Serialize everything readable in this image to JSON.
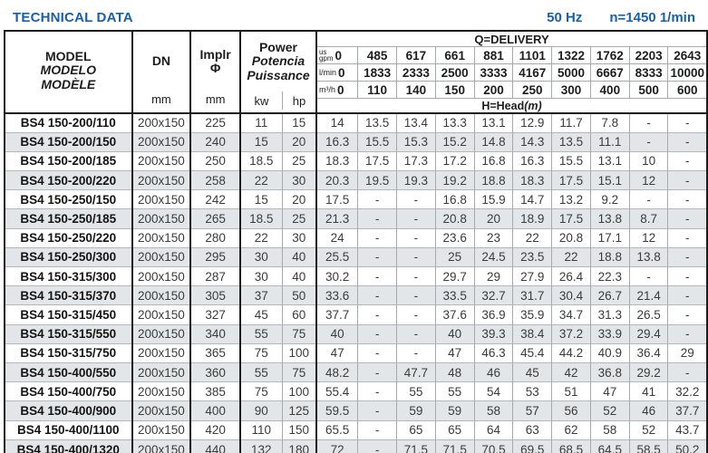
{
  "page": {
    "title": "TECHNICAL DATA",
    "frequency": "50 Hz",
    "speed": "n=1450 1/min"
  },
  "table": {
    "headers": {
      "model_lines": [
        "MODEL",
        "MODELO",
        "MODÈLE"
      ],
      "dn_label": "DN",
      "dn_unit": "mm",
      "implr_label": "Implr",
      "implr_symbol": "Φ",
      "implr_unit": "mm",
      "power_lines": [
        "Power",
        "Potencia",
        "Puissance"
      ],
      "power_units": [
        "kw",
        "hp"
      ],
      "delivery_title": "Q=DELIVERY",
      "delivery_unit_rows": [
        {
          "unit_lines": [
            "us",
            "gpm"
          ],
          "values": [
            "0",
            "485",
            "617",
            "661",
            "881",
            "1101",
            "1322",
            "1762",
            "2203",
            "2643"
          ]
        },
        {
          "unit_lines": [
            "l/min"
          ],
          "values": [
            "0",
            "1833",
            "2333",
            "2500",
            "3333",
            "4167",
            "5000",
            "6667",
            "8333",
            "10000"
          ]
        },
        {
          "unit_lines": [
            "m³/h"
          ],
          "values": [
            "0",
            "110",
            "140",
            "150",
            "200",
            "250",
            "300",
            "400",
            "500",
            "600"
          ]
        }
      ],
      "head_label": "H=Head",
      "head_unit": "(m)"
    },
    "rows": [
      {
        "model": "BS4 150-200/110",
        "dn": "200x150",
        "implr": "225",
        "kw": "11",
        "hp": "15",
        "head": [
          "14",
          "13.5",
          "13.4",
          "13.3",
          "13.1",
          "12.9",
          "11.7",
          "7.8",
          "-",
          "-"
        ]
      },
      {
        "model": "BS4 150-200/150",
        "dn": "200x150",
        "implr": "240",
        "kw": "15",
        "hp": "20",
        "head": [
          "16.3",
          "15.5",
          "15.3",
          "15.2",
          "14.8",
          "14.3",
          "13.5",
          "11.1",
          "-",
          "-"
        ]
      },
      {
        "model": "BS4 150-200/185",
        "dn": "200x150",
        "implr": "250",
        "kw": "18.5",
        "hp": "25",
        "head": [
          "18.3",
          "17.5",
          "17.3",
          "17.2",
          "16.8",
          "16.3",
          "15.5",
          "13.1",
          "10",
          "-"
        ]
      },
      {
        "model": "BS4 150-200/220",
        "dn": "200x150",
        "implr": "258",
        "kw": "22",
        "hp": "30",
        "head": [
          "20.3",
          "19.5",
          "19.3",
          "19.2",
          "18.8",
          "18.3",
          "17.5",
          "15.1",
          "12",
          "-"
        ]
      },
      {
        "model": "BS4 150-250/150",
        "dn": "200x150",
        "implr": "242",
        "kw": "15",
        "hp": "20",
        "head": [
          "17.5",
          "-",
          "-",
          "16.8",
          "15.9",
          "14.7",
          "13.2",
          "9.2",
          "-",
          "-"
        ]
      },
      {
        "model": "BS4 150-250/185",
        "dn": "200x150",
        "implr": "265",
        "kw": "18.5",
        "hp": "25",
        "head": [
          "21.3",
          "-",
          "-",
          "20.8",
          "20",
          "18.9",
          "17.5",
          "13.8",
          "8.7",
          "-"
        ]
      },
      {
        "model": "BS4 150-250/220",
        "dn": "200x150",
        "implr": "280",
        "kw": "22",
        "hp": "30",
        "head": [
          "24",
          "-",
          "-",
          "23.6",
          "23",
          "22",
          "20.8",
          "17.1",
          "12",
          "-"
        ]
      },
      {
        "model": "BS4 150-250/300",
        "dn": "200x150",
        "implr": "295",
        "kw": "30",
        "hp": "40",
        "head": [
          "25.5",
          "-",
          "-",
          "25",
          "24.5",
          "23.5",
          "22",
          "18.8",
          "13.8",
          "-"
        ]
      },
      {
        "model": "BS4 150-315/300",
        "dn": "200x150",
        "implr": "287",
        "kw": "30",
        "hp": "40",
        "head": [
          "30.2",
          "-",
          "-",
          "29.7",
          "29",
          "27.9",
          "26.4",
          "22.3",
          "-",
          "-"
        ]
      },
      {
        "model": "BS4 150-315/370",
        "dn": "200x150",
        "implr": "305",
        "kw": "37",
        "hp": "50",
        "head": [
          "33.6",
          "-",
          "-",
          "33.5",
          "32.7",
          "31.7",
          "30.4",
          "26.7",
          "21.4",
          "-"
        ]
      },
      {
        "model": "BS4 150-315/450",
        "dn": "200x150",
        "implr": "327",
        "kw": "45",
        "hp": "60",
        "head": [
          "37.7",
          "-",
          "-",
          "37.6",
          "36.9",
          "35.9",
          "34.7",
          "31.3",
          "26.5",
          "-"
        ]
      },
      {
        "model": "BS4 150-315/550",
        "dn": "200x150",
        "implr": "340",
        "kw": "55",
        "hp": "75",
        "head": [
          "40",
          "-",
          "-",
          "40",
          "39.3",
          "38.4",
          "37.2",
          "33.9",
          "29.4",
          "-"
        ]
      },
      {
        "model": "BS4 150-315/750",
        "dn": "200x150",
        "implr": "365",
        "kw": "75",
        "hp": "100",
        "head": [
          "47",
          "-",
          "-",
          "47",
          "46.3",
          "45.4",
          "44.2",
          "40.9",
          "36.4",
          "29"
        ]
      },
      {
        "model": "BS4 150-400/550",
        "dn": "200x150",
        "implr": "360",
        "kw": "55",
        "hp": "75",
        "head": [
          "48.2",
          "-",
          "47.7",
          "48",
          "46",
          "45",
          "42",
          "36.8",
          "29.2",
          "-"
        ]
      },
      {
        "model": "BS4 150-400/750",
        "dn": "200x150",
        "implr": "385",
        "kw": "75",
        "hp": "100",
        "head": [
          "55.4",
          "-",
          "55",
          "55",
          "54",
          "53",
          "51",
          "47",
          "41",
          "32.2"
        ]
      },
      {
        "model": "BS4 150-400/900",
        "dn": "200x150",
        "implr": "400",
        "kw": "90",
        "hp": "125",
        "head": [
          "59.5",
          "-",
          "59",
          "59",
          "58",
          "57",
          "56",
          "52",
          "46",
          "37.7"
        ]
      },
      {
        "model": "BS4 150-400/1100",
        "dn": "200x150",
        "implr": "420",
        "kw": "110",
        "hp": "150",
        "head": [
          "65.5",
          "-",
          "65",
          "65",
          "64",
          "63",
          "62",
          "58",
          "52",
          "43.7"
        ]
      },
      {
        "model": "BS4 150-400/1320",
        "dn": "200x150",
        "implr": "440",
        "kw": "132",
        "hp": "180",
        "head": [
          "72",
          "-",
          "71.5",
          "71.5",
          "70.5",
          "69.5",
          "68.5",
          "64.5",
          "58.5",
          "50.2"
        ]
      }
    ]
  }
}
